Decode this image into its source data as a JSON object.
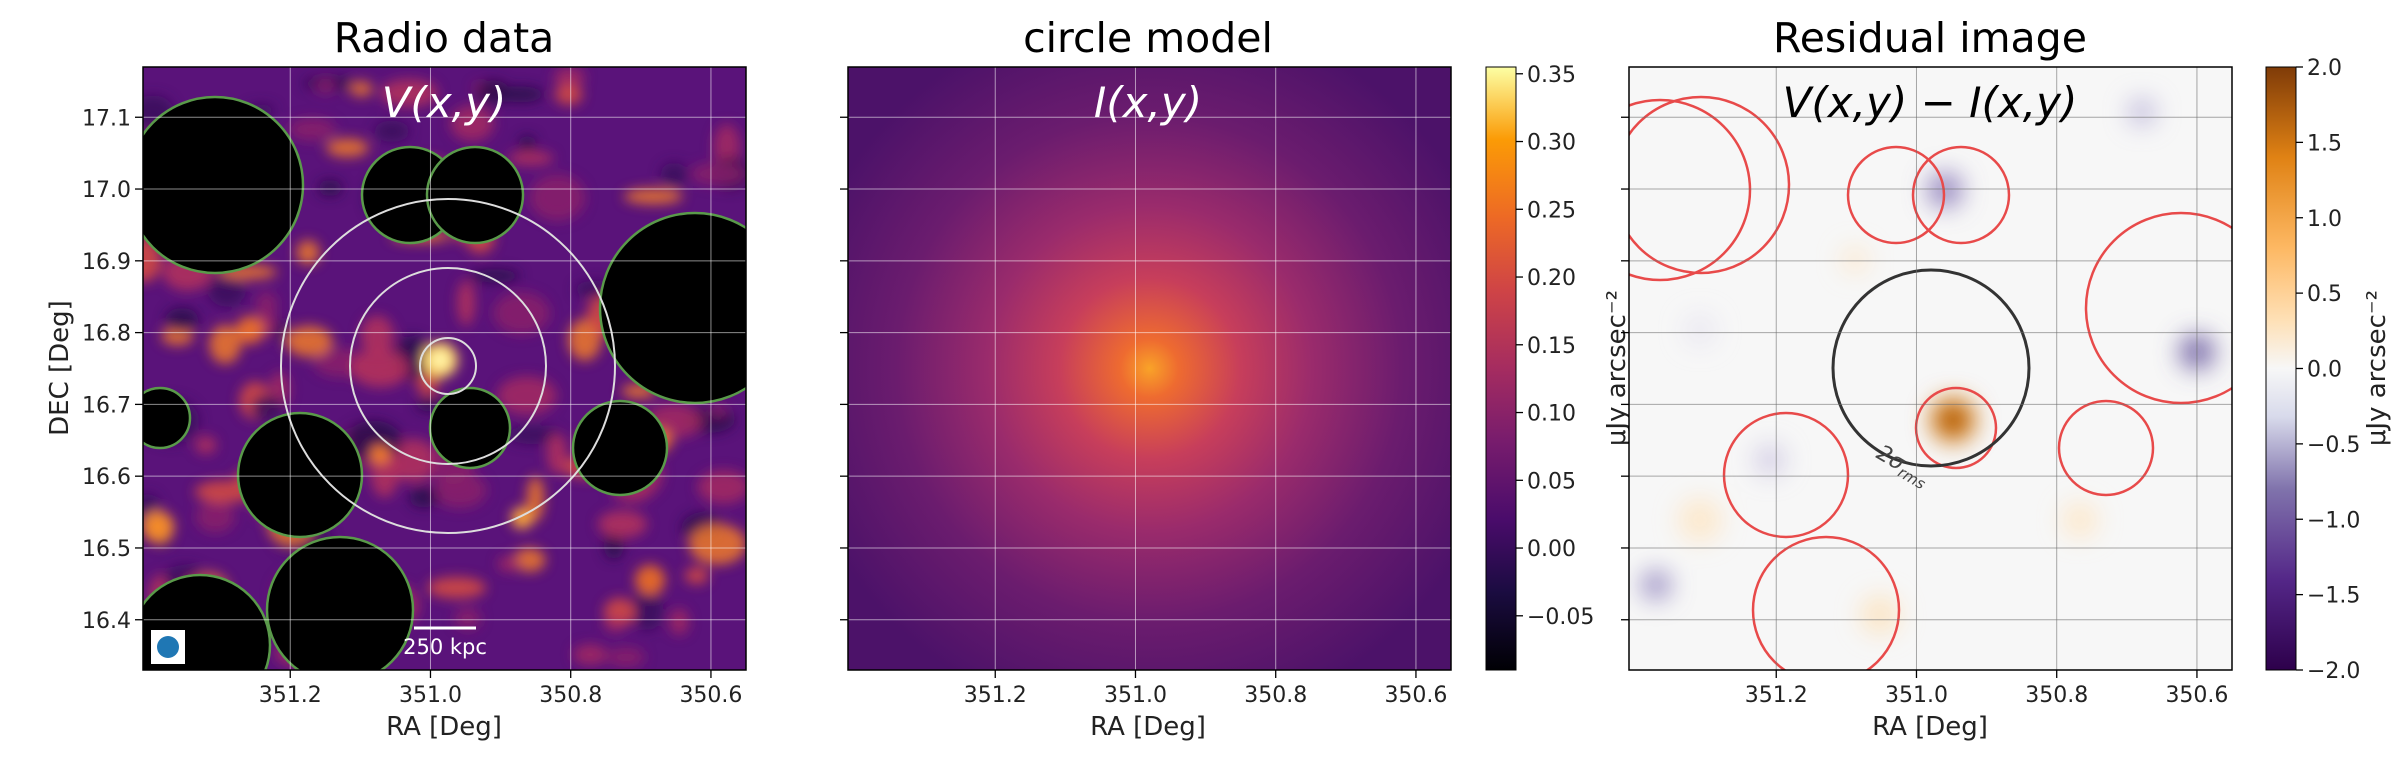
{
  "chart_data": [
    {
      "type": "heatmap",
      "title": "Radio data",
      "annotation": "V(x,y)",
      "xlabel": "RA [Deg]",
      "ylabel": "DEC [Deg]",
      "xlim": [
        351.41,
        350.55
      ],
      "ylim": [
        16.33,
        17.17
      ],
      "xticks": [
        351.2,
        351.0,
        350.8,
        350.6
      ],
      "xtick_labels": [
        "351.2",
        "351.0",
        "350.8",
        "350.6"
      ],
      "yticks": [
        16.4,
        16.5,
        16.6,
        16.7,
        16.8,
        16.9,
        17.0,
        17.1
      ],
      "ytick_labels": [
        "16.4",
        "16.5",
        "16.6",
        "16.7",
        "16.8",
        "16.9",
        "17.0",
        "17.1"
      ],
      "colormap": "inferno",
      "grid": true,
      "scalebar_label": "250 kpc",
      "beam": "blue filled circle, bottom-left",
      "mask_color": "#5a9a4a",
      "concentric_circle_color": "#dddddd"
    },
    {
      "type": "heatmap",
      "title": "circle model",
      "annotation": "I(x,y)",
      "xlabel": "RA [Deg]",
      "xticks": [
        351.2,
        351.0,
        350.8,
        350.6
      ],
      "xtick_labels": [
        "351.2",
        "351.0",
        "350.8",
        "350.6"
      ],
      "colormap": "inferno",
      "grid": true,
      "colorbar": {
        "range": [
          -0.09,
          0.355
        ],
        "ticks": [
          -0.05,
          0.0,
          0.05,
          0.1,
          0.15,
          0.2,
          0.25,
          0.3,
          0.35
        ],
        "tick_labels": [
          "−0.05",
          "0.00",
          "0.05",
          "0.10",
          "0.15",
          "0.20",
          "0.25",
          "0.30",
          "0.35"
        ],
        "label": "μJy arcsec⁻²"
      }
    },
    {
      "type": "heatmap",
      "title": "Residual image",
      "annotation": "V(x,y) − I(x,y)",
      "xlabel": "RA [Deg]",
      "xticks": [
        351.2,
        351.0,
        350.8,
        350.6
      ],
      "xtick_labels": [
        "351.2",
        "351.0",
        "350.8",
        "350.6"
      ],
      "colormap": "PuOr_r",
      "grid": true,
      "circle_label": "2σ",
      "circle_label_sub": "rms",
      "mask_color": "#e84a4a",
      "colorbar": {
        "range": [
          -2.0,
          2.0
        ],
        "ticks": [
          -2.0,
          -1.5,
          -1.0,
          -0.5,
          0.0,
          0.5,
          1.0,
          1.5,
          2.0
        ],
        "tick_labels": [
          "−2.0",
          "−1.5",
          "−1.0",
          "−0.5",
          "0.0",
          "0.5",
          "1.0",
          "1.5",
          "2.0"
        ],
        "label": "μJy arcsec⁻²"
      }
    }
  ]
}
